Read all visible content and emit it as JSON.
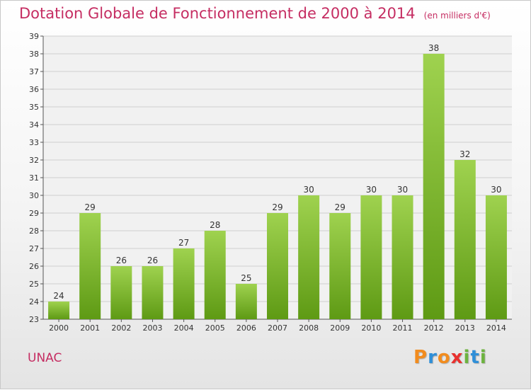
{
  "title": "Dotation Globale de Fonctionnement de 2000 à 2014",
  "subtitle": "(en milliers d'€)",
  "commune": "UNAC",
  "logo": {
    "letters": [
      "P",
      "r",
      "o",
      "x",
      "i",
      "t",
      "i"
    ],
    "colors": [
      "#f28c1e",
      "#2f8fd8",
      "#f28c1e",
      "#e8312f",
      "#6db33f",
      "#2f8fd8",
      "#6db33f"
    ]
  },
  "chart_data": {
    "type": "bar",
    "categories": [
      "2000",
      "2001",
      "2002",
      "2003",
      "2004",
      "2005",
      "2006",
      "2007",
      "2008",
      "2009",
      "2010",
      "2011",
      "2012",
      "2013",
      "2014"
    ],
    "values": [
      24,
      29,
      26,
      26,
      27,
      28,
      25,
      29,
      30,
      29,
      30,
      30,
      38,
      32,
      30
    ],
    "ylim": [
      23,
      39
    ],
    "yticks": [
      23,
      24,
      25,
      26,
      27,
      28,
      29,
      30,
      31,
      32,
      33,
      34,
      35,
      36,
      37,
      38,
      39
    ],
    "grid": true,
    "bar_color_top": "#9fd24f",
    "bar_color_bottom": "#5e9a14"
  }
}
